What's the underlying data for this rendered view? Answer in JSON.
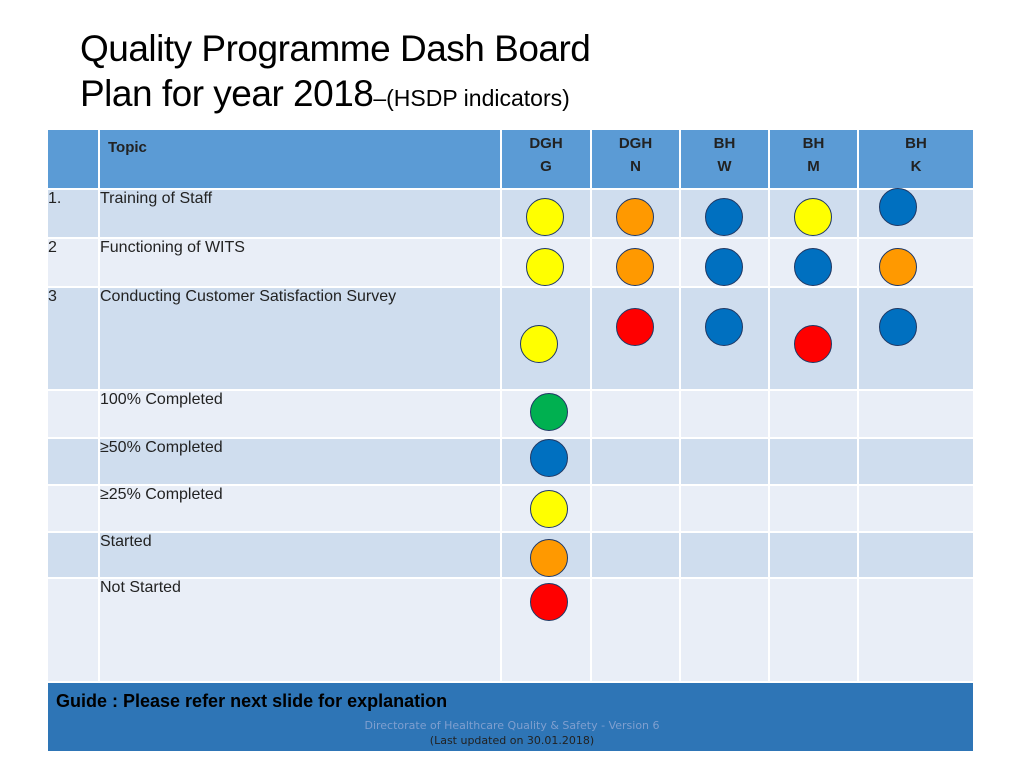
{
  "title": {
    "line1": "Quality Programme Dash Board",
    "line2": "Plan for year 2018",
    "line2_suffix": "–(HSDP indicators)"
  },
  "colors": {
    "yellow": "#ffff00",
    "orange": "#ff9900",
    "blue": "#0070c0",
    "red": "#ff0000",
    "green": "#00b050",
    "header": "#5b9bd5",
    "row_dark": "#cfddee",
    "row_light": "#e9eef7",
    "guide_bar": "#2e75b6"
  },
  "table": {
    "topic_header": "Topic",
    "columns": [
      {
        "line1": "DGH",
        "line2": "G"
      },
      {
        "line1": "DGH",
        "line2": "N"
      },
      {
        "line1": "BH",
        "line2": "W"
      },
      {
        "line1": "BH",
        "line2": "M"
      },
      {
        "line1": "BH",
        "line2": "K"
      }
    ],
    "rows": [
      {
        "num": "1.",
        "topic": "Training of Staff",
        "status": [
          "yellow",
          "orange",
          "blue",
          "yellow",
          "blue"
        ]
      },
      {
        "num": "2",
        "topic": "Functioning of WITS",
        "status": [
          "yellow",
          "orange",
          "blue",
          "blue",
          "orange"
        ]
      },
      {
        "num": "3",
        "topic": "Conducting Customer Satisfaction Survey",
        "status": [
          "yellow",
          "red",
          "blue",
          "red",
          "blue"
        ]
      }
    ],
    "legend": [
      {
        "label": "100% Completed",
        "color": "green"
      },
      {
        "label": "≥50% Completed",
        "color": "blue"
      },
      {
        "label": "≥25% Completed",
        "color": "yellow"
      },
      {
        "label": "Started",
        "color": "orange"
      },
      {
        "label": "Not Started",
        "color": "red"
      }
    ],
    "guide": "Guide : Please refer next slide for explanation"
  },
  "footer": {
    "line1": "Directorate of Healthcare Quality & Safety - Version 6",
    "line2": "(Last updated on 30.01.2018)"
  }
}
